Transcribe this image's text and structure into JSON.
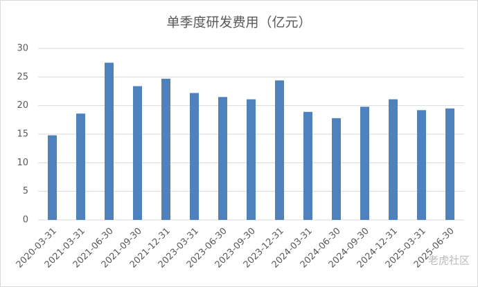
{
  "chart_data": {
    "type": "bar",
    "title": "单季度研发费用（亿元）",
    "categories": [
      "2020-03-31",
      "2021-03-31",
      "2021-06-30",
      "2021-09-30",
      "2021-12-31",
      "2023-03-31",
      "2023-06-30",
      "2023-09-30",
      "2023-12-31",
      "2024-03-31",
      "2024-06-30",
      "2024-09-30",
      "2024-12-31",
      "2025-03-31",
      "2025-06-30"
    ],
    "values": [
      14.8,
      18.6,
      27.5,
      23.4,
      24.7,
      22.2,
      21.5,
      21.1,
      24.4,
      18.9,
      17.8,
      19.8,
      21.1,
      19.2,
      19.5
    ],
    "color": "#4f81bd",
    "ylim": [
      0,
      30
    ],
    "yticks": [
      0,
      5,
      10,
      15,
      20,
      25,
      30
    ],
    "grid": true,
    "watermark": "老虎社区"
  }
}
